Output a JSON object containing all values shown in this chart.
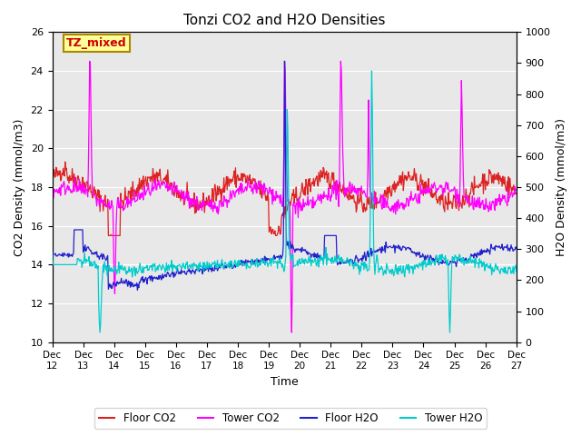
{
  "title": "Tonzi CO2 and H2O Densities",
  "xlabel": "Time",
  "ylabel_left": "CO2 Density (mmol/m3)",
  "ylabel_right": "H2O Density (mmol/m3)",
  "annotation": "TZ_mixed",
  "annotation_color": "#cc0000",
  "annotation_bg": "#ffff99",
  "annotation_border": "#aa8800",
  "ylim_left": [
    10,
    26
  ],
  "ylim_right": [
    0,
    1000
  ],
  "yticks_left": [
    10,
    12,
    14,
    16,
    18,
    20,
    22,
    24,
    26
  ],
  "yticks_right": [
    0,
    100,
    200,
    300,
    400,
    500,
    600,
    700,
    800,
    900,
    1000
  ],
  "xtick_labels": [
    "Dec 12",
    "Dec 13",
    "Dec 14",
    "Dec 15",
    "Dec 16",
    "Dec 17",
    "Dec 18",
    "Dec 19",
    "Dec 20",
    "Dec 21",
    "Dec 22",
    "Dec 23",
    "Dec 24",
    "Dec 25",
    "Dec 26",
    "Dec 27"
  ],
  "colors": {
    "floor_co2": "#dd2222",
    "tower_co2": "#ff00ff",
    "floor_h2o": "#2222cc",
    "tower_h2o": "#00cccc"
  },
  "background_color": "#e8e8e8",
  "grid_color": "#ffffff",
  "n_points": 720
}
